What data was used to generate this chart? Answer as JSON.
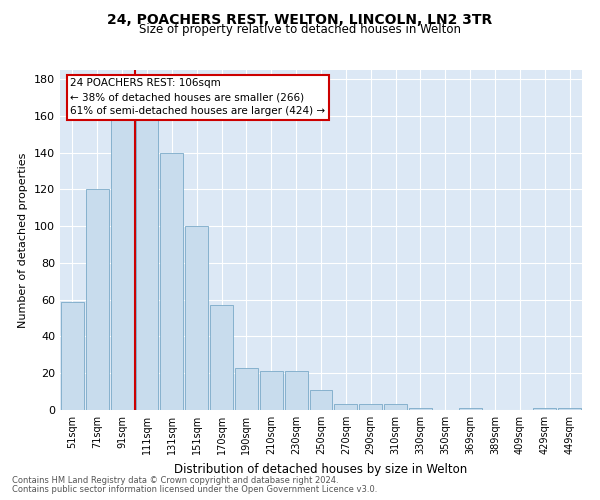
{
  "title": "24, POACHERS REST, WELTON, LINCOLN, LN2 3TR",
  "subtitle": "Size of property relative to detached houses in Welton",
  "xlabel": "Distribution of detached houses by size in Welton",
  "ylabel": "Number of detached properties",
  "property_label": "24 POACHERS REST: 106sqm",
  "annotation_line1": "← 38% of detached houses are smaller (266)",
  "annotation_line2": "61% of semi-detached houses are larger (424) →",
  "bar_color": "#c8dced",
  "bar_edge_color": "#7aaac8",
  "vline_color": "#cc0000",
  "annotation_box_color": "#cc0000",
  "background_color": "#dce8f5",
  "categories": [
    "51sqm",
    "71sqm",
    "91sqm",
    "111sqm",
    "131sqm",
    "151sqm",
    "170sqm",
    "190sqm",
    "210sqm",
    "230sqm",
    "250sqm",
    "270sqm",
    "290sqm",
    "310sqm",
    "330sqm",
    "350sqm",
    "369sqm",
    "389sqm",
    "409sqm",
    "429sqm",
    "449sqm"
  ],
  "values": [
    59,
    120,
    160,
    160,
    140,
    100,
    57,
    23,
    21,
    21,
    11,
    3,
    3,
    3,
    1,
    0,
    1,
    0,
    0,
    1,
    1
  ],
  "ylim": [
    0,
    185
  ],
  "yticks": [
    0,
    20,
    40,
    60,
    80,
    100,
    120,
    140,
    160,
    180
  ],
  "footnote1": "Contains HM Land Registry data © Crown copyright and database right 2024.",
  "footnote2": "Contains public sector information licensed under the Open Government Licence v3.0."
}
